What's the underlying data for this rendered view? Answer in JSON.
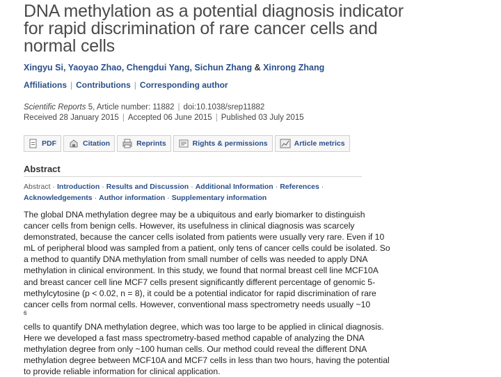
{
  "article": {
    "title_lines": [
      "DNA methylation as a potential diagnosis indicator",
      "for rapid discrimination of rare cancer cells and",
      "normal cells"
    ],
    "authors": [
      "Xingyu Si",
      "Yaoyao Zhao",
      "Chengdui Yang",
      "Sichun Zhang"
    ],
    "author_joiner": ", ",
    "author_amp": "&",
    "last_author": "Xinrong Zhang",
    "links": [
      "Affiliations",
      "Contributions",
      "Corresponding author"
    ],
    "link_separator": "|",
    "journal": "Scientific Reports",
    "volume": "5",
    "article_number": "Article number: 11882",
    "doi": "doi:10.1038/srep11882",
    "received": "Received 28 January 2015",
    "accepted": "Accepted 06 June 2015",
    "published": "Published 03 July 2015"
  },
  "toolbar": [
    {
      "label": "PDF",
      "icon": "pdf-icon"
    },
    {
      "label": "Citation",
      "icon": "citation-icon"
    },
    {
      "label": "Reprints",
      "icon": "reprints-icon"
    },
    {
      "label": "Rights & permissions",
      "icon": "rights-icon"
    },
    {
      "label": "Article metrics",
      "icon": "metrics-icon"
    }
  ],
  "abstract": {
    "heading": "Abstract",
    "toc_lead": "Abstract",
    "toc_separator": "·",
    "toc_line1": [
      "Introduction",
      "Results and Discussion",
      "Additional Information",
      "References"
    ],
    "toc_line2": [
      "Acknowledgements",
      "Author information",
      "Supplementary information"
    ],
    "lines": [
      "The global DNA methylation degree may be a ubiquitous and early biomarker to distinguish",
      "cancer cells from benign cells. However, its usefulness in clinical diagnosis was scarcely",
      "demonstrated, because the cancer cells isolated from patients were usually very rare. Even if 10",
      "mL of peripheral blood was sampled from a patient, only tens of cancer cells could be isolated. So",
      "a method to quantify DNA methylation from small number of cells was needed to apply DNA",
      "methylation in clinical environment. In this study, we found that normal breast cell line MCF10A",
      "and breast cancer cell line MCF7 cells present significantly different percentage of genomic 5-",
      "methylcytosine (p < 0.02, n = 8), it could be a potential indicator for rapid discrimination of rare",
      "cancer cells from normal cells. However, conventional mass spectrometry needs usually ~10",
      "cells to quantify DNA methylation degree, which was too large to be applied in clinical diagnosis.",
      "Here we developed a fast mass spectrometry-based method capable of analyzing the DNA",
      "methylation degree from only ~100 human cells. Our method could reveal the different DNA",
      "methylation degree between MCF10A and MCF7 cells in less than two hours, having the potential",
      "to provide reliable information for clinical application."
    ],
    "superscript_line_index": 8,
    "superscript": "6"
  }
}
